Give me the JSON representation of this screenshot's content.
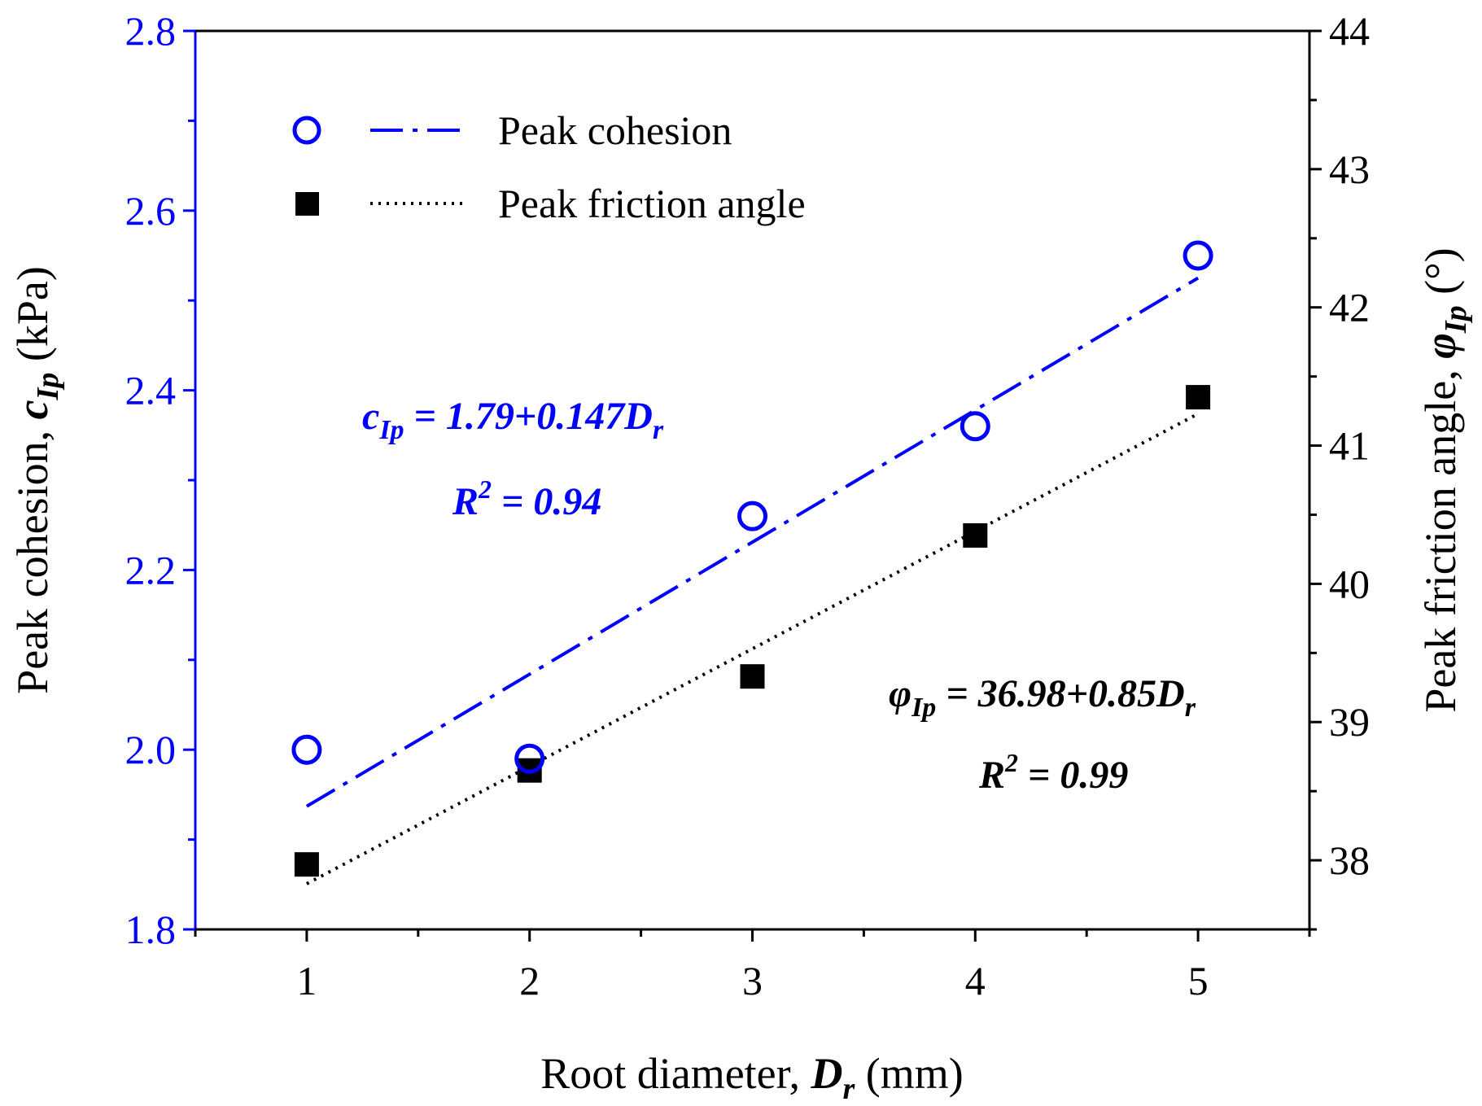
{
  "chart_data": {
    "type": "scatter",
    "x": [
      1,
      2,
      3,
      4,
      5
    ],
    "xlabel": {
      "prefix": "Root diameter, ",
      "symbol": "D",
      "subscript": "r",
      "suffix": " (mm)"
    },
    "xlim": [
      0.5,
      5.5
    ],
    "xticks": [
      "1",
      "2",
      "3",
      "4",
      "5"
    ],
    "ylabel_left": {
      "prefix": "Peak cohesion, ",
      "symbol": "c",
      "subscript": "Ip",
      "suffix": " (kPa)"
    },
    "ylim_left": [
      1.8,
      2.8
    ],
    "yticks_left": [
      "1.8",
      "2.0",
      "2.2",
      "2.4",
      "2.6",
      "2.8"
    ],
    "ylabel_right": {
      "prefix": "Peak friction angle, ",
      "symbol": "φ",
      "subscript": "Ip",
      "suffix": " (°)"
    },
    "ylim_right": [
      37.5,
      44
    ],
    "yticks_right": [
      "38",
      "39",
      "40",
      "41",
      "42",
      "43",
      "44"
    ],
    "series": [
      {
        "name": "Peak cohesion",
        "axis": "left",
        "marker": "open-circle",
        "line_style": "dash-dot",
        "color": "#0000ff",
        "values": [
          2.0,
          1.99,
          2.26,
          2.36,
          2.55
        ],
        "fit": {
          "intercept": 1.79,
          "slope": 0.147
        }
      },
      {
        "name": "Peak friction angle",
        "axis": "right",
        "marker": "filled-square",
        "line_style": "dotted",
        "color": "#000000",
        "values": [
          37.97,
          38.65,
          39.33,
          40.35,
          41.35
        ],
        "fit": {
          "intercept": 36.98,
          "slope": 0.85
        }
      }
    ],
    "legend_position": "top-left",
    "annotations": [
      {
        "series": "Peak cohesion",
        "equation": {
          "symbol": "c",
          "sub": "Ip",
          "rhs": " = 1.79+0.147D",
          "rhs_sub": "r"
        },
        "r2": {
          "base": "R",
          "sup": "2",
          "rest": " = 0.94"
        }
      },
      {
        "series": "Peak friction angle",
        "equation": {
          "symbol": "φ",
          "sub": "Ip",
          "rhs": " = 36.98+0.85D",
          "rhs_sub": "r"
        },
        "r2": {
          "base": "R",
          "sup": "2",
          "rest": " = 0.99"
        }
      }
    ]
  }
}
